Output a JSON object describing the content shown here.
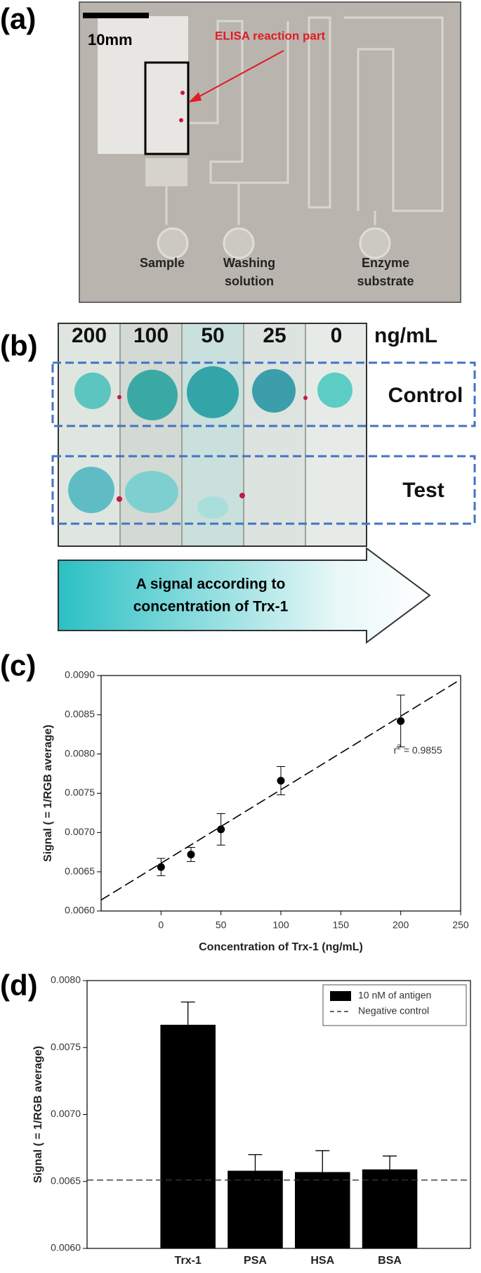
{
  "panels": {
    "a": {
      "label": "(a)",
      "scale": "10mm",
      "callout": "ELISA reaction part",
      "inlets": [
        "Sample",
        "Washing solution",
        "Enzyme substrate"
      ]
    },
    "b": {
      "label": "(b)",
      "concentrations": [
        "200",
        "100",
        "50",
        "25",
        "0"
      ],
      "unit": "ng/mL",
      "rows": [
        "Control",
        "Test"
      ],
      "arrow_text": [
        "A signal according to",
        "concentration of Trx-1"
      ]
    }
  },
  "chart_data": [
    {
      "type": "scatter",
      "panel": "(c)",
      "y_label": "Signal ( = 1/RGB average)",
      "x_label": "Concentration of Trx-1 (ng/mL)",
      "x": [
        0,
        25,
        50,
        100,
        200
      ],
      "values": [
        0.00656,
        0.00672,
        0.00704,
        0.00766,
        0.00842
      ],
      "errors": [
        0.00011,
        9e-05,
        0.0002,
        0.00018,
        0.00033
      ],
      "color": "#000000",
      "fit_line": {
        "x": [
          -50,
          250
        ],
        "y": [
          0.00614,
          0.00895
        ]
      },
      "annotation": [
        "r",
        "2",
        " = 0.9855"
      ],
      "xlim": [
        -50,
        250
      ],
      "xticks": [
        0,
        50,
        100,
        150,
        200,
        250
      ],
      "ylim": [
        0.006,
        0.009
      ],
      "yticks": [
        {
          "value": 0.006,
          "label": "0.0060"
        },
        0.0065,
        {
          "value": 0.007,
          "label": "0.0070"
        },
        0.0075,
        {
          "value": 0.008,
          "label": "0.0080"
        },
        0.0085,
        {
          "value": 0.009,
          "label": "0.0090"
        }
      ]
    },
    {
      "type": "bar",
      "panel": "(d)",
      "y_label": "Signal ( = 1/RGB average)",
      "categories": [
        "Trx-1",
        "PSA",
        "HSA",
        "BSA"
      ],
      "series": [
        {
          "name": "10 nM of antigen",
          "color": "#000000",
          "values": [
            0.00767,
            0.00658,
            0.00657,
            0.00659
          ],
          "errors": [
            0.00017,
            0.00012,
            0.00016,
            0.0001
          ]
        }
      ],
      "reference": {
        "name": "Negative control",
        "value": 0.00651,
        "color": "#333333"
      },
      "legend": "upper right",
      "ylim": [
        0.006,
        0.008
      ],
      "yticks": [
        {
          "value": 0.006,
          "label": "0.0060"
        },
        0.0065,
        {
          "value": 0.007,
          "label": "0.0070"
        },
        0.0075,
        {
          "value": 0.008,
          "label": "0.0080"
        }
      ]
    }
  ]
}
